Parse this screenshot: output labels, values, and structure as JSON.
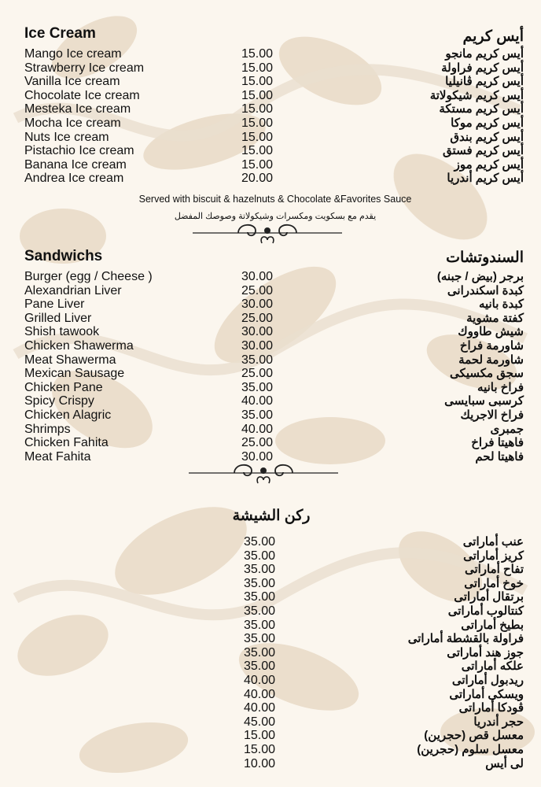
{
  "ice_cream": {
    "title_en": "Ice Cream",
    "title_ar": "أيس كريم",
    "items": [
      {
        "en": "Mango Ice cream",
        "price": "15.00",
        "ar": "أيس كريم مانجو"
      },
      {
        "en": "Strawberry Ice cream",
        "price": "15.00",
        "ar": "أيس كريم فراولة"
      },
      {
        "en": "Vanilla Ice cream",
        "price": "15.00",
        "ar": "أيس كريم ڤانيليا"
      },
      {
        "en": "Chocolate Ice cream",
        "price": "15.00",
        "ar": "أيس كريم شيكولاتة"
      },
      {
        "en": "Mesteka Ice cream",
        "price": "15.00",
        "ar": "أيس كريم مستكة"
      },
      {
        "en": "Mocha Ice cream",
        "price": "15.00",
        "ar": "أيس كريم موكا"
      },
      {
        "en": "Nuts Ice cream",
        "price": "15.00",
        "ar": "أيس كريم بندق"
      },
      {
        "en": "Pistachio Ice cream",
        "price": "15.00",
        "ar": "أيس كريم فستق"
      },
      {
        "en": "Banana Ice cream",
        "price": "15.00",
        "ar": "أيس كريم موز"
      },
      {
        "en": "Andrea Ice cream",
        "price": "20.00",
        "ar": "أيس كريم أندريا"
      }
    ],
    "note_en": "Served with biscuit & hazelnuts & Chocolate &Favorites Sauce",
    "note_ar": "يقدم مع بسكويت ومكسرات وشيكولاتة وصوصك المفضل"
  },
  "sandwiches": {
    "title_en": "Sandwichs",
    "title_ar": "السندوتشات",
    "items": [
      {
        "en": "Burger (egg / Cheese )",
        "price": "30.00",
        "ar": "برجر (بيض / جبنه)"
      },
      {
        "en": "Alexandrian Liver",
        "price": "25.00",
        "ar": "كبدة اسكندرانى"
      },
      {
        "en": "Pane Liver",
        "price": "30.00",
        "ar": "كبدة بانيه"
      },
      {
        "en": "Grilled Liver",
        "price": "25.00",
        "ar": "كفتة مشوية"
      },
      {
        "en": "Shish tawook",
        "price": "30.00",
        "ar": "شيش طاووك"
      },
      {
        "en": "Chicken Shawerma",
        "price": "30.00",
        "ar": "شاورمة فراخ"
      },
      {
        "en": "Meat Shawerma",
        "price": "35.00",
        "ar": "شاورمة لحمة"
      },
      {
        "en": "Mexican Sausage",
        "price": "25.00",
        "ar": "سجق مكسيكى"
      },
      {
        "en": "Chicken Pane",
        "price": "35.00",
        "ar": "فراخ بانيه"
      },
      {
        "en": "Spicy Crispy",
        "price": "40.00",
        "ar": "كرسبى سبايسى"
      },
      {
        "en": "Chicken Alagric",
        "price": "35.00",
        "ar": "فراخ الاجريك"
      },
      {
        "en": "Shrimps",
        "price": "40.00",
        "ar": "جمبرى"
      },
      {
        "en": "Chicken Fahita",
        "price": "25.00",
        "ar": "فاهيتا فراخ"
      },
      {
        "en": "Meat Fahita",
        "price": "30.00",
        "ar": "فاهيتا لحم"
      }
    ]
  },
  "shisha": {
    "title_ar": "ركن الشيشة",
    "items": [
      {
        "price": "35.00",
        "ar": "عنب أماراتى"
      },
      {
        "price": "35.00",
        "ar": "كريز أماراتى"
      },
      {
        "price": "35.00",
        "ar": "تفاح أماراتى"
      },
      {
        "price": "35.00",
        "ar": "خوخ أماراتى"
      },
      {
        "price": "35.00",
        "ar": "برتقال أماراتى"
      },
      {
        "price": "35.00",
        "ar": "كنتالوب أماراتى"
      },
      {
        "price": "35.00",
        "ar": "بطيخ أماراتى"
      },
      {
        "price": "35.00",
        "ar": "فراولة بالقشطة أماراتى"
      },
      {
        "price": "35.00",
        "ar": "جوز هند أماراتى"
      },
      {
        "price": "35.00",
        "ar": "علكه أماراتى"
      },
      {
        "price": "40.00",
        "ar": "ريدبول أماراتى"
      },
      {
        "price": "40.00",
        "ar": "ويسكى أماراتى"
      },
      {
        "price": "40.00",
        "ar": "ڤودكا أماراتى"
      },
      {
        "price": "45.00",
        "ar": "حجر أندريا"
      },
      {
        "price": "15.00",
        "ar": "معسل قص (حجرين)"
      },
      {
        "price": "15.00",
        "ar": "معسل سلوم (حجرين)"
      },
      {
        "price": "10.00",
        "ar": "لى أيس"
      }
    ]
  },
  "colors": {
    "background": "#fbf6ee",
    "pattern": "#e8dac6",
    "text": "#111111"
  }
}
